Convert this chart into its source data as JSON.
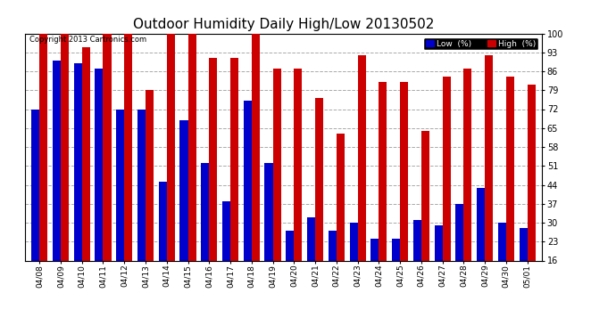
{
  "title": "Outdoor Humidity Daily High/Low 20130502",
  "copyright_text": "Copyright 2013 Cartronics.com",
  "dates": [
    "04/08",
    "04/09",
    "04/10",
    "04/11",
    "04/12",
    "04/13",
    "04/14",
    "04/15",
    "04/16",
    "04/17",
    "04/18",
    "04/19",
    "04/20",
    "04/21",
    "04/22",
    "04/23",
    "04/24",
    "04/25",
    "04/26",
    "04/27",
    "04/28",
    "04/29",
    "04/30",
    "05/01"
  ],
  "low_values": [
    72,
    90,
    89,
    87,
    72,
    72,
    45,
    68,
    52,
    38,
    75,
    52,
    27,
    32,
    27,
    30,
    24,
    24,
    31,
    29,
    37,
    43,
    30,
    28
  ],
  "high_values": [
    100,
    100,
    95,
    100,
    100,
    79,
    100,
    100,
    91,
    91,
    100,
    87,
    87,
    76,
    63,
    92,
    82,
    82,
    64,
    84,
    87,
    92,
    84,
    81
  ],
  "low_color": "#0000cc",
  "high_color": "#cc0000",
  "bg_color": "#ffffff",
  "plot_bg_color": "#ffffff",
  "grid_color": "#aaaaaa",
  "ymin": 16,
  "ymax": 100,
  "yticks": [
    16,
    23,
    30,
    37,
    44,
    51,
    58,
    65,
    72,
    79,
    86,
    93,
    100
  ],
  "title_fontsize": 11,
  "legend_low_label": "Low  (%)",
  "legend_high_label": "High  (%)",
  "fig_width": 6.9,
  "fig_height": 3.75,
  "dpi": 100
}
